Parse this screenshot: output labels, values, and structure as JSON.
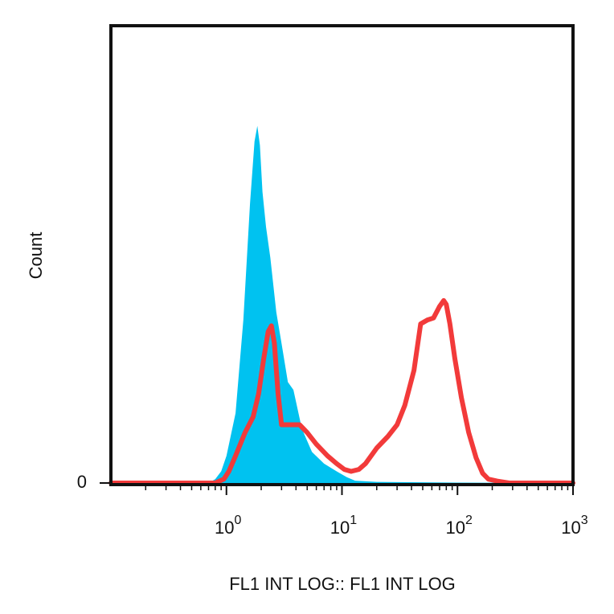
{
  "chart_data": {
    "type": "area",
    "title": "",
    "xlabel": "FL1 INT LOG:: FL1 INT LOG",
    "ylabel": "Count",
    "x_scale": "log",
    "xlim": [
      0.1,
      1000
    ],
    "ylim": [
      0,
      100
    ],
    "x_ticks": [
      {
        "value": 1,
        "base": "10",
        "exp": "0"
      },
      {
        "value": 10,
        "base": "10",
        "exp": "1"
      },
      {
        "value": 100,
        "base": "10",
        "exp": "2"
      },
      {
        "value": 1000,
        "base": "10",
        "exp": "3"
      }
    ],
    "y_ticks": [
      {
        "value": 0,
        "label": "0"
      }
    ],
    "grid": false,
    "series": [
      {
        "color": "#00c2f0",
        "style": "filled",
        "x": [
          0.1,
          0.7,
          0.8,
          0.9,
          1.0,
          1.2,
          1.4,
          1.6,
          1.75,
          1.85,
          1.95,
          2.05,
          2.2,
          2.4,
          2.7,
          3.0,
          3.4,
          3.8,
          4.5,
          5.5,
          7.0,
          9.0,
          11.0,
          13.0,
          20.0,
          40.0,
          100.0,
          1000.0
        ],
        "y": [
          0,
          0,
          1,
          3,
          7,
          18,
          42,
          72,
          88,
          92,
          87,
          75,
          66,
          58,
          44,
          36,
          26,
          24,
          14,
          8,
          5,
          3,
          1.5,
          0.6,
          0.3,
          0.2,
          0.1,
          0
        ]
      },
      {
        "color": "#f23a3a",
        "style": "line",
        "x": [
          0.1,
          0.8,
          0.95,
          1.05,
          1.2,
          1.45,
          1.7,
          1.9,
          2.1,
          2.3,
          2.45,
          2.6,
          2.8,
          3.0,
          3.5,
          4.3,
          5.0,
          6.0,
          7.5,
          9.0,
          10.5,
          12.0,
          14.0,
          16.0,
          20.0,
          25.0,
          30.0,
          35.0,
          42.0,
          48.0,
          55.0,
          62.0,
          70.0,
          76.0,
          80.0,
          86.0,
          95.0,
          108.0,
          125.0,
          145.0,
          165.0,
          185.0,
          220.0,
          280.0,
          1000.0
        ],
        "y": [
          0,
          0,
          1,
          3,
          7,
          13,
          17,
          23,
          32,
          39,
          40.5,
          36,
          23,
          15,
          15,
          15,
          13,
          10,
          7,
          5,
          3.5,
          3,
          3.5,
          5,
          9,
          12,
          15,
          20,
          29,
          41,
          42,
          42.5,
          45.5,
          47,
          46,
          41,
          32,
          22,
          13,
          6.5,
          2.5,
          1,
          0.5,
          0,
          0
        ]
      }
    ]
  }
}
